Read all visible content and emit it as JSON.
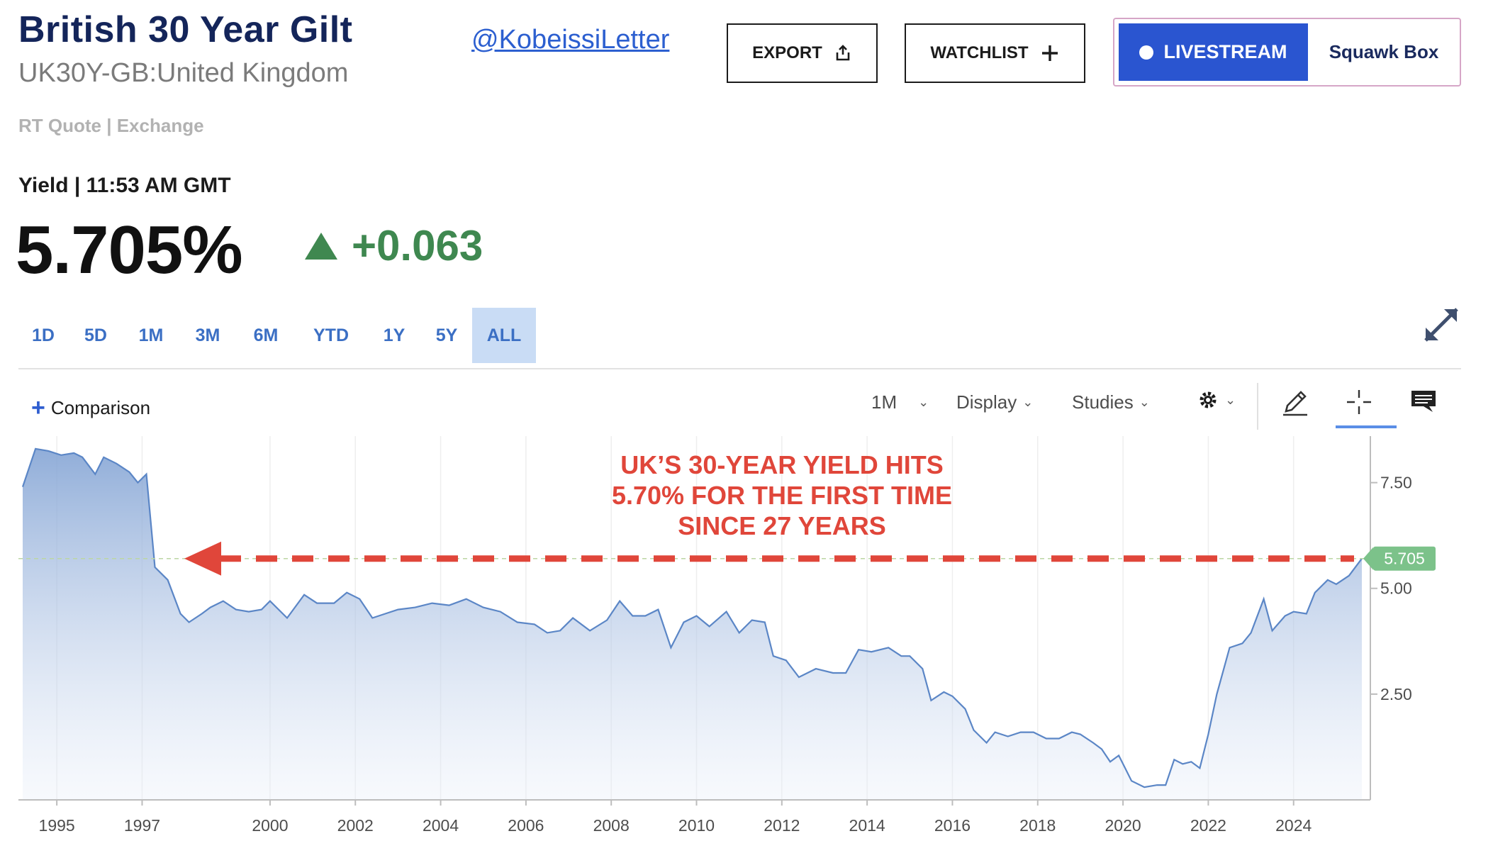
{
  "header": {
    "title": "British 30 Year Gilt",
    "subtitle": "UK30Y-GB:United Kingdom",
    "handle": "@KobeissiLetter",
    "quote_source": "RT Quote | Exchange"
  },
  "actions": {
    "export_label": "EXPORT",
    "watchlist_label": "WATCHLIST",
    "livestream_label": "LIVESTREAM",
    "squawk_label": "Squawk Box"
  },
  "quote": {
    "yield_label": "Yield | 11:53 AM GMT",
    "price": "5.705%",
    "change": "+0.063",
    "direction": "up"
  },
  "ranges": [
    "1D",
    "5D",
    "1M",
    "3M",
    "6M",
    "YTD",
    "1Y",
    "5Y",
    "ALL"
  ],
  "active_range": "ALL",
  "toolbar": {
    "comparison_label": "Comparison",
    "interval_label": "1M",
    "display_label": "Display",
    "studies_label": "Studies"
  },
  "colors": {
    "brand_navy": "#14255a",
    "accent_blue": "#2a55d0",
    "positive_green": "#3f8850",
    "annotation_red": "#e0463a",
    "line_blue": "#5b86c6",
    "last_price_badge": "#7cc28a"
  },
  "chart_data": {
    "type": "area",
    "title": "",
    "xlabel": "",
    "ylabel": "",
    "x_ticks": [
      "1995",
      "1997",
      "2000",
      "2002",
      "2004",
      "2006",
      "2008",
      "2010",
      "2012",
      "2014",
      "2016",
      "2018",
      "2020",
      "2022",
      "2024"
    ],
    "y_ticks": [
      "2.50",
      "5.00",
      "7.50"
    ],
    "xlim": [
      1994.1,
      2025.8
    ],
    "ylim": [
      0.0,
      8.6
    ],
    "grid": "vertical",
    "last_value_label": "5.705",
    "reference_line": 5.705,
    "annotation": {
      "lines": [
        "UK’S 30-YEAR YIELD HITS",
        "5.70% FOR THE FIRST TIME",
        "SINCE 27 YEARS"
      ]
    },
    "series": [
      {
        "x": [
          1994.2,
          1994.5,
          1994.8,
          1995.1,
          1995.4,
          1995.6,
          1995.9,
          1996.1,
          1996.4,
          1996.7,
          1996.9,
          1997.1,
          1997.3,
          1997.6,
          1997.9,
          1998.1,
          1998.4,
          1998.6,
          1998.9,
          1999.2,
          1999.5,
          1999.8,
          2000.0,
          2000.4,
          2000.8,
          2001.1,
          2001.5,
          2001.8,
          2002.1,
          2002.4,
          2002.7,
          2003.0,
          2003.4,
          2003.8,
          2004.2,
          2004.6,
          2005.0,
          2005.4,
          2005.8,
          2006.2,
          2006.5,
          2006.8,
          2007.1,
          2007.5,
          2007.9,
          2008.2,
          2008.5,
          2008.8,
          2009.1,
          2009.4,
          2009.7,
          2010.0,
          2010.3,
          2010.7,
          2011.0,
          2011.3,
          2011.6,
          2011.8,
          2012.1,
          2012.4,
          2012.8,
          2013.2,
          2013.5,
          2013.8,
          2014.1,
          2014.5,
          2014.8,
          2015.0,
          2015.3,
          2015.5,
          2015.8,
          2016.0,
          2016.3,
          2016.5,
          2016.8,
          2017.0,
          2017.3,
          2017.6,
          2017.9,
          2018.2,
          2018.5,
          2018.8,
          2019.0,
          2019.3,
          2019.5,
          2019.7,
          2019.9,
          2020.0,
          2020.2,
          2020.5,
          2020.8,
          2021.0,
          2021.2,
          2021.4,
          2021.6,
          2021.8,
          2022.0,
          2022.2,
          2022.5,
          2022.8,
          2023.0,
          2023.3,
          2023.5,
          2023.8,
          2024.0,
          2024.3,
          2024.5,
          2024.8,
          2025.0,
          2025.3,
          2025.6
        ],
        "y": [
          7.4,
          8.3,
          8.25,
          8.15,
          8.2,
          8.1,
          7.7,
          8.1,
          7.95,
          7.75,
          7.5,
          7.7,
          5.5,
          5.2,
          4.4,
          4.2,
          4.4,
          4.55,
          4.7,
          4.5,
          4.45,
          4.5,
          4.7,
          4.3,
          4.85,
          4.65,
          4.65,
          4.9,
          4.75,
          4.3,
          4.4,
          4.5,
          4.55,
          4.65,
          4.6,
          4.75,
          4.55,
          4.45,
          4.2,
          4.15,
          3.95,
          4.0,
          4.3,
          4.0,
          4.25,
          4.7,
          4.35,
          4.35,
          4.5,
          3.6,
          4.2,
          4.35,
          4.1,
          4.45,
          3.95,
          4.25,
          4.2,
          3.4,
          3.3,
          2.9,
          3.1,
          3.0,
          3.0,
          3.55,
          3.5,
          3.6,
          3.4,
          3.4,
          3.1,
          2.35,
          2.55,
          2.45,
          2.15,
          1.65,
          1.35,
          1.6,
          1.5,
          1.6,
          1.6,
          1.45,
          1.45,
          1.6,
          1.55,
          1.35,
          1.2,
          0.9,
          1.05,
          0.85,
          0.45,
          0.3,
          0.35,
          0.35,
          0.95,
          0.85,
          0.9,
          0.75,
          1.55,
          2.5,
          3.6,
          3.7,
          3.95,
          4.75,
          4.0,
          4.35,
          4.45,
          4.4,
          4.9,
          5.2,
          5.1,
          5.3,
          5.705
        ]
      }
    ]
  }
}
